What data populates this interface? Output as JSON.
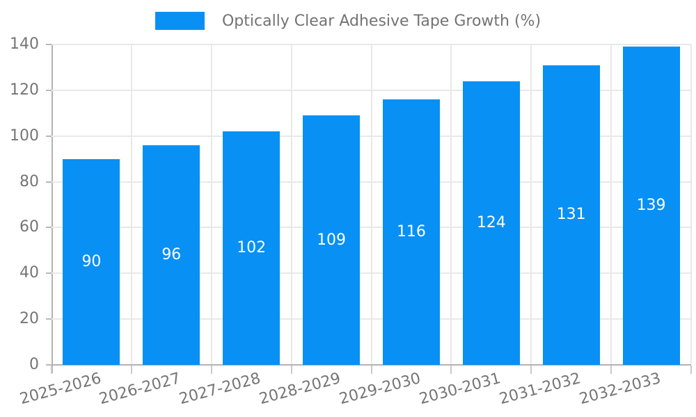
{
  "legend": {
    "label": "Optically Clear Adhesive Tape Growth (%)"
  },
  "chart_data": {
    "type": "bar",
    "title": "",
    "xlabel": "",
    "ylabel": "",
    "categories": [
      "2025-2026",
      "2026-2027",
      "2027-2028",
      "2028-2029",
      "2029-2030",
      "2030-2031",
      "2031-2032",
      "2032-2033"
    ],
    "series": [
      {
        "name": "Optically Clear Adhesive Tape Growth (%)",
        "values": [
          90,
          96,
          102,
          109,
          116,
          124,
          131,
          139
        ]
      }
    ],
    "bar_value_labels": [
      "90",
      "96",
      "102",
      "109",
      "116",
      "124",
      "131",
      "139"
    ],
    "ylim": [
      0,
      140
    ],
    "yticks": [
      0,
      20,
      40,
      60,
      80,
      100,
      120,
      140
    ],
    "grid": true,
    "legend_position": "top-center",
    "colors": {
      "bar": "#0890f4",
      "bar_label": "#ffffff",
      "axis_text": "#757575",
      "legend_text": "#737373",
      "gridline": "#e8e8e8",
      "axis_line": "#b2b2b2"
    }
  }
}
